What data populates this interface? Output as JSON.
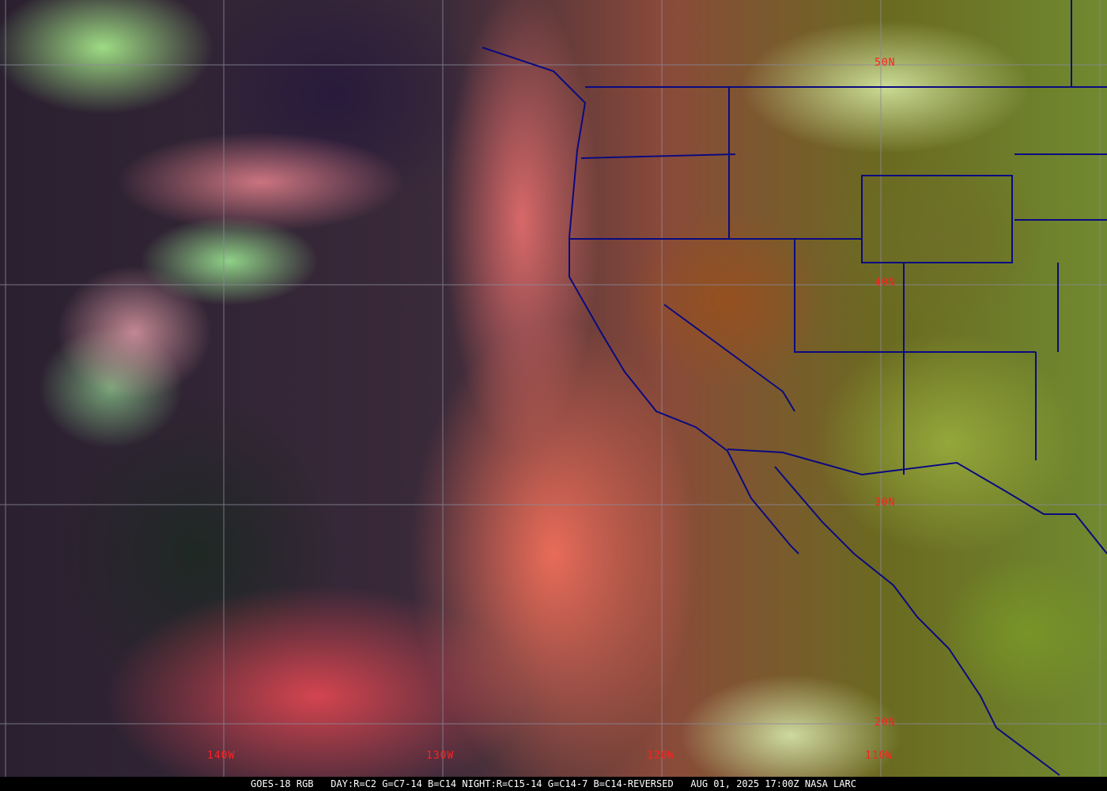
{
  "map": {
    "latitude_labels": [
      "50N",
      "40N",
      "30N",
      "20N"
    ],
    "longitude_labels": [
      "140W",
      "130W",
      "120W",
      "110W"
    ],
    "colors": {
      "grid": "#8a8a9a",
      "labels": "#ff2020",
      "boundaries": "#0a0a80",
      "caption_bg": "#000000",
      "caption_text": "#ffffff"
    }
  },
  "caption": {
    "satellite": "GOES-18 RGB",
    "recipe": "DAY:R=C2 G=C7-14 B=C14 NIGHT:R=C15-14 G=C14-7 B=C14-REVERSED",
    "timestamp": "AUG 01, 2025 17:00Z",
    "credit": "NASA LARC"
  }
}
